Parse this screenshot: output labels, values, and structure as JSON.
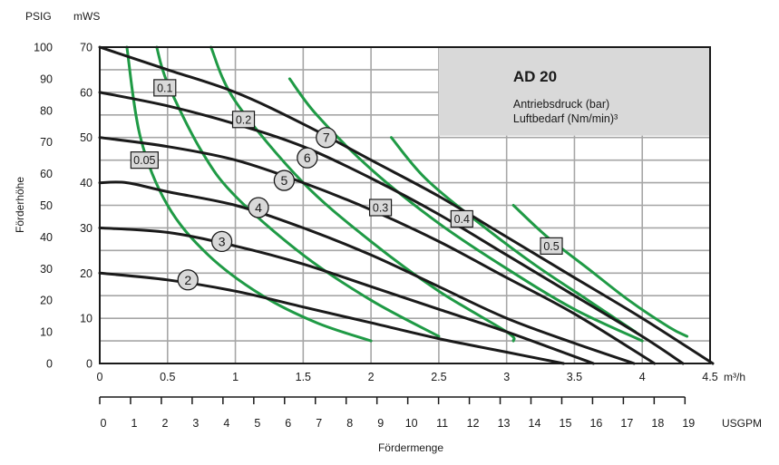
{
  "chart_data": {
    "type": "line",
    "left_axis_psig": {
      "label": "PSIG",
      "ticks": [
        "100",
        "90",
        "80",
        "70",
        "60",
        "50",
        "40",
        "30",
        "20",
        "10",
        "0"
      ]
    },
    "left_axis_mws": {
      "label": "mWS",
      "ticks": [
        "70",
        "60",
        "50",
        "40",
        "30",
        "20",
        "10",
        "0"
      ],
      "ylim": [
        0,
        70
      ]
    },
    "ylabel": "Förderhöhe",
    "x_axis_m3h": {
      "unit": "m³/h",
      "ticks": [
        "0",
        "0.5",
        "1",
        "1.5",
        "2",
        "2.5",
        "3",
        "3.5",
        "4",
        "4.5"
      ],
      "xlim": [
        0,
        4.5
      ]
    },
    "x_axis_usgpm": {
      "unit": "USGPM",
      "ticks": [
        "0",
        "1",
        "2",
        "3",
        "4",
        "5",
        "6",
        "7",
        "8",
        "9",
        "10",
        "11",
        "12",
        "13",
        "14",
        "15",
        "16",
        "17",
        "18",
        "19"
      ]
    },
    "xlabel": "Fördermenge",
    "grid": true,
    "info_box": {
      "title": "AD 20",
      "line1": "Antriebsdruck (bar)",
      "line2": "Luftbedarf (Nm/min)³"
    },
    "series": [
      {
        "name": "2",
        "kind": "pressure",
        "x": [
          0,
          0.5,
          1,
          1.5,
          2,
          2.5,
          3,
          3.42
        ],
        "y": [
          20,
          18.5,
          16,
          12.5,
          9,
          5.5,
          2.5,
          0
        ]
      },
      {
        "name": "3",
        "kind": "pressure",
        "x": [
          0,
          0.5,
          1,
          1.5,
          2,
          2.5,
          3,
          3.64
        ],
        "y": [
          30,
          29,
          26,
          22,
          17,
          12,
          7,
          0
        ]
      },
      {
        "name": "4",
        "kind": "pressure",
        "x": [
          0,
          0.2,
          0.5,
          1,
          1.5,
          2,
          2.5,
          3,
          3.5,
          3.94
        ],
        "y": [
          40,
          40,
          38,
          35,
          30,
          24,
          17,
          10,
          4.5,
          0
        ]
      },
      {
        "name": "5",
        "kind": "pressure",
        "x": [
          0,
          0.5,
          1,
          1.5,
          2,
          2.5,
          3,
          3.5,
          4.09
        ],
        "y": [
          50,
          48,
          45,
          40,
          34,
          27,
          19,
          11,
          0
        ]
      },
      {
        "name": "6",
        "kind": "pressure",
        "x": [
          0,
          0.5,
          1,
          1.5,
          2,
          2.5,
          3,
          3.5,
          4,
          4.3
        ],
        "y": [
          60,
          57,
          53,
          48,
          41,
          33,
          24,
          15,
          6,
          0
        ]
      },
      {
        "name": "7",
        "kind": "pressure",
        "x": [
          0,
          0.5,
          1,
          1.5,
          2,
          2.5,
          3,
          3.5,
          4,
          4.52
        ],
        "y": [
          70,
          65,
          60,
          53,
          45,
          37,
          28,
          19,
          10,
          0
        ]
      },
      {
        "name": "0.05",
        "kind": "air",
        "x": [
          0.2,
          0.3,
          0.5,
          0.8,
          1.2,
          1.6,
          2.0
        ],
        "y": [
          70,
          50,
          35,
          24,
          15,
          9,
          5
        ]
      },
      {
        "name": "0.1",
        "kind": "air",
        "x": [
          0.42,
          0.5,
          0.75,
          1.0,
          1.5,
          2.0,
          2.5
        ],
        "y": [
          70,
          62,
          47,
          37,
          24,
          14,
          6
        ]
      },
      {
        "name": "0.2",
        "kind": "air",
        "x": [
          0.82,
          1.0,
          1.5,
          2.0,
          2.5,
          3.0,
          3.05
        ],
        "y": [
          70,
          58,
          40,
          27,
          16,
          7,
          5
        ]
      },
      {
        "name": "0.3",
        "kind": "air",
        "x": [
          1.4,
          1.6,
          2.0,
          2.5,
          3.0,
          3.5,
          4.0
        ],
        "y": [
          63,
          55,
          43,
          31,
          21,
          12,
          5
        ]
      },
      {
        "name": "0.4",
        "kind": "air",
        "x": [
          2.15,
          2.4,
          2.8,
          3.2,
          3.6,
          3.95
        ],
        "y": [
          50,
          41,
          31,
          22,
          14,
          7
        ]
      },
      {
        "name": "0.5",
        "kind": "air",
        "x": [
          3.05,
          3.3,
          3.6,
          3.9,
          4.2,
          4.33
        ],
        "y": [
          35,
          28,
          21,
          14,
          8,
          6
        ]
      }
    ]
  }
}
